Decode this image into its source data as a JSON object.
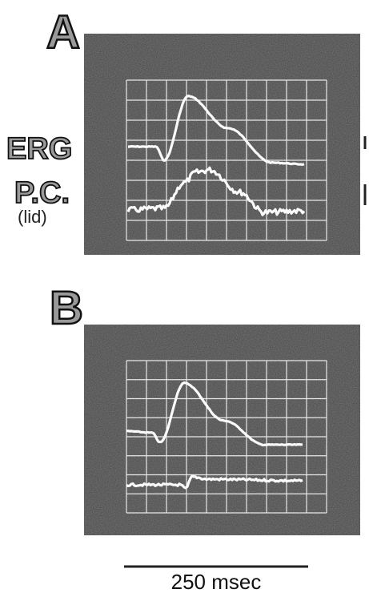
{
  "panels": [
    {
      "label": "A"
    },
    {
      "label": "B"
    }
  ],
  "trace_labels": {
    "erg": "ERG",
    "pc": "P.C.",
    "pc_site": "(lid)"
  },
  "scale_bar": {
    "label": "250 msec"
  }
}
